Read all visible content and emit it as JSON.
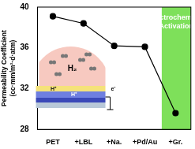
{
  "chart_data": {
    "type": "line",
    "y_label": [
      "Permeability Coefficient",
      "(cc·mm/m²·d·atm)"
    ],
    "categories": [
      "PET",
      "+LBL",
      "+Na.",
      "+Pd/Au",
      "+Gr."
    ],
    "values": [
      39.1,
      38.4,
      36.2,
      36.1,
      29.6
    ],
    "color": "#000000",
    "marker": "circle",
    "ylim": [
      28,
      40
    ],
    "yticks": [
      28,
      32,
      36,
      40
    ],
    "grid": false,
    "annotations": {
      "region": [
        "Electrochemical",
        "Activation"
      ],
      "region_color": "#7ee05a",
      "inset": {
        "gas": "H₂",
        "proton": "H⁺",
        "electron": "e⁻"
      }
    }
  }
}
